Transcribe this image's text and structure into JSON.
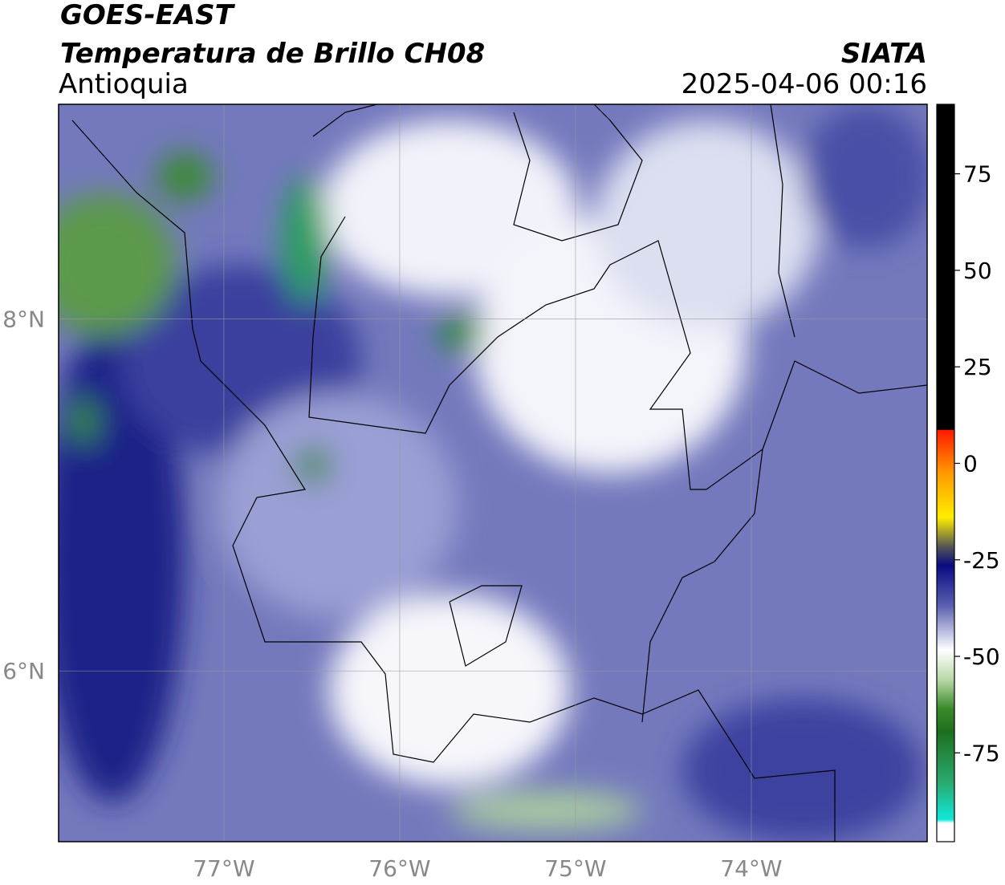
{
  "header": {
    "title": "GOES-EAST",
    "subtitle": "Temperatura de Brillo CH08",
    "region": "Antioquia",
    "source": "SIATA",
    "datetime": "2025-04-06 00:16"
  },
  "map": {
    "xlim": [
      -77.94,
      -73.0
    ],
    "ylim": [
      5.03,
      9.22
    ],
    "xticks": [
      {
        "value": -77,
        "label": "77°W"
      },
      {
        "value": -76,
        "label": "76°W"
      },
      {
        "value": -75,
        "label": "75°W"
      },
      {
        "value": -74,
        "label": "74°W"
      }
    ],
    "yticks": [
      {
        "value": 8,
        "label": "8°N"
      },
      {
        "value": 6,
        "label": "6°N"
      }
    ]
  },
  "colorbar": {
    "ylim": [
      -98,
      93
    ],
    "yticks": [
      75,
      50,
      25,
      0,
      -25,
      -50,
      -75
    ]
  }
}
